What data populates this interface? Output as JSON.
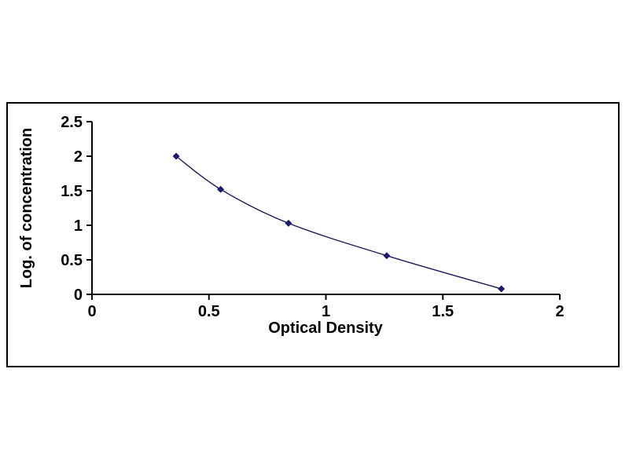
{
  "chart_data": {
    "type": "line",
    "title": "",
    "xlabel": "Optical Density",
    "ylabel": "Log. of concentration",
    "x": [
      0.36,
      0.55,
      0.84,
      1.26,
      1.75
    ],
    "y": [
      2.0,
      1.52,
      1.03,
      0.56,
      0.08
    ],
    "xticks": [
      0,
      0.5,
      1,
      1.5,
      2
    ],
    "yticks": [
      0,
      0.5,
      1,
      1.5,
      2,
      2.5
    ],
    "xlim": [
      0,
      2
    ],
    "ylim": [
      0,
      2.5
    ],
    "marker": "diamond",
    "grid": false,
    "legend": "none",
    "axis_color": "#000000",
    "line_color": "#1a1a5e",
    "marker_color": "#1a1a6e",
    "frame_color": "#000000",
    "background_color": "#ffffff"
  }
}
